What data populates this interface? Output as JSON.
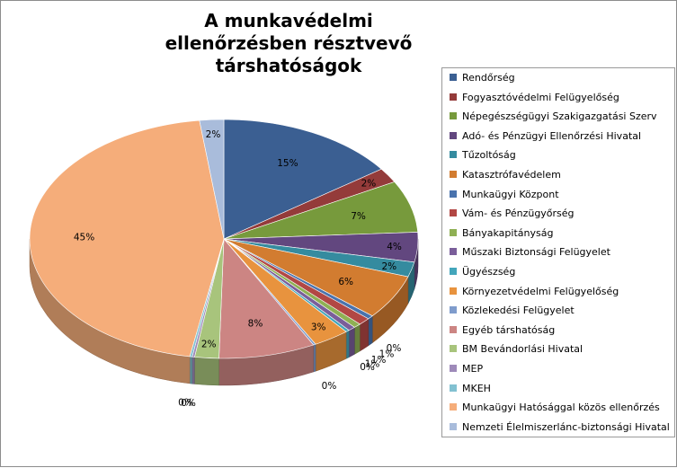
{
  "chart_data": {
    "type": "pie",
    "title": "A munkavédelmi ellenőrzésben résztvevő társhatóságok",
    "legend_position": "right",
    "slices": [
      {
        "name": "Rendőrség",
        "value": 15,
        "label": "15%",
        "color": "#3b5f92"
      },
      {
        "name": "Fogyasztóvédelmi Felügyelőség",
        "value": 2,
        "label": "2%",
        "color": "#943b3a"
      },
      {
        "name": "Népegészségügyi Szakigazgatási Szerv",
        "value": 7,
        "label": "7%",
        "color": "#779a3c"
      },
      {
        "name": "Adó- és Pénzügyi Ellenőrzési Hivatal",
        "value": 4,
        "label": "4%",
        "color": "#62477f"
      },
      {
        "name": "Tűzoltóság",
        "value": 2,
        "label": "2%",
        "color": "#358b9f"
      },
      {
        "name": "Katasztrófavédelem",
        "value": 6,
        "label": "6%",
        "color": "#d27c30"
      },
      {
        "name": "Munkaügyi Központ",
        "value": 0.5,
        "label": "0%",
        "color": "#4a73ad"
      },
      {
        "name": "Vám- és Pénzügyőrség",
        "value": 1,
        "label": "1%",
        "color": "#b24744"
      },
      {
        "name": "Bányakapitányság",
        "value": 0.6,
        "label": "1%",
        "color": "#8fb054"
      },
      {
        "name": "Műszaki Biztonsági Felügyelet",
        "value": 0.6,
        "label": "1%",
        "color": "#7a5e9a"
      },
      {
        "name": "Ügyészség",
        "value": 0.3,
        "label": "0%",
        "color": "#43a6bb"
      },
      {
        "name": "Környezetvédelmi Felügyelőség",
        "value": 3,
        "label": "3%",
        "color": "#e8933e"
      },
      {
        "name": "Közlekedési Felügyelet",
        "value": 0.2,
        "label": "0%",
        "color": "#7f9ccc"
      },
      {
        "name": "Egyéb társhatóság",
        "value": 8,
        "label": "8%",
        "color": "#cc8583"
      },
      {
        "name": "BM Bevándorlási Hivatal",
        "value": 2,
        "label": "2%",
        "color": "#a8c47c"
      },
      {
        "name": "MEP",
        "value": 0.2,
        "label": "0%",
        "color": "#9e8ab9"
      },
      {
        "name": "MKEH",
        "value": 0.2,
        "label": "0%",
        "color": "#82c1d1"
      },
      {
        "name": "Munkaügyi Hatósággal közös ellenőrzés",
        "value": 45,
        "label": "45%",
        "color": "#f5ad7a"
      },
      {
        "name": "Nemzeti Élelmiszerlánc-biztonsági Hivatal",
        "value": 2,
        "label": "2%",
        "color": "#a9bcdb"
      }
    ]
  }
}
